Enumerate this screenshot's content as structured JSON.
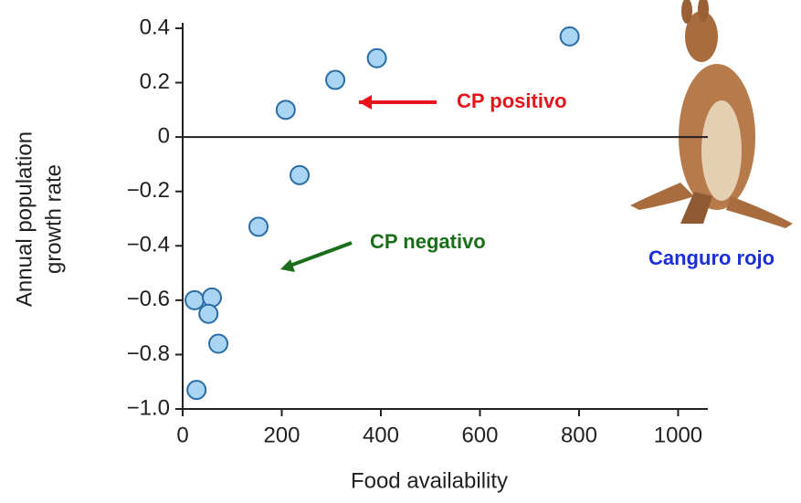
{
  "chart_data": {
    "type": "scatter",
    "xlabel": "Food availability",
    "ylabel": [
      "Annual population",
      "growth rate"
    ],
    "x": [
      24,
      59,
      52,
      72,
      28,
      153,
      236,
      208,
      308,
      392,
      781
    ],
    "values": [
      -0.6,
      -0.59,
      -0.65,
      -0.76,
      -0.93,
      -0.33,
      -0.14,
      0.1,
      0.21,
      0.29,
      0.37
    ],
    "color": "#a9d5f2",
    "edge_color": "#2a6ca6",
    "xlim": [
      0,
      1060
    ],
    "ylim": [
      -1.0,
      0.42
    ],
    "xticks": [
      0,
      200,
      400,
      600,
      800,
      1000
    ],
    "yticks": [
      {
        "value": -1.0,
        "label": "−1.0"
      },
      {
        "value": -0.8,
        "label": "−0.8"
      },
      {
        "value": -0.6,
        "label": "−0.6"
      },
      {
        "value": -0.4,
        "label": "−0.4"
      },
      {
        "value": -0.2,
        "label": "−0.2"
      },
      0,
      0.2,
      0.4
    ],
    "zero_line": true,
    "annotations": [
      {
        "text": "CP positivo",
        "color": "#e8141b"
      },
      {
        "text": "CP negativo",
        "color": "#1a6e1a"
      },
      {
        "text": "Canguro rojo",
        "color": "#1c2fd6"
      }
    ]
  }
}
